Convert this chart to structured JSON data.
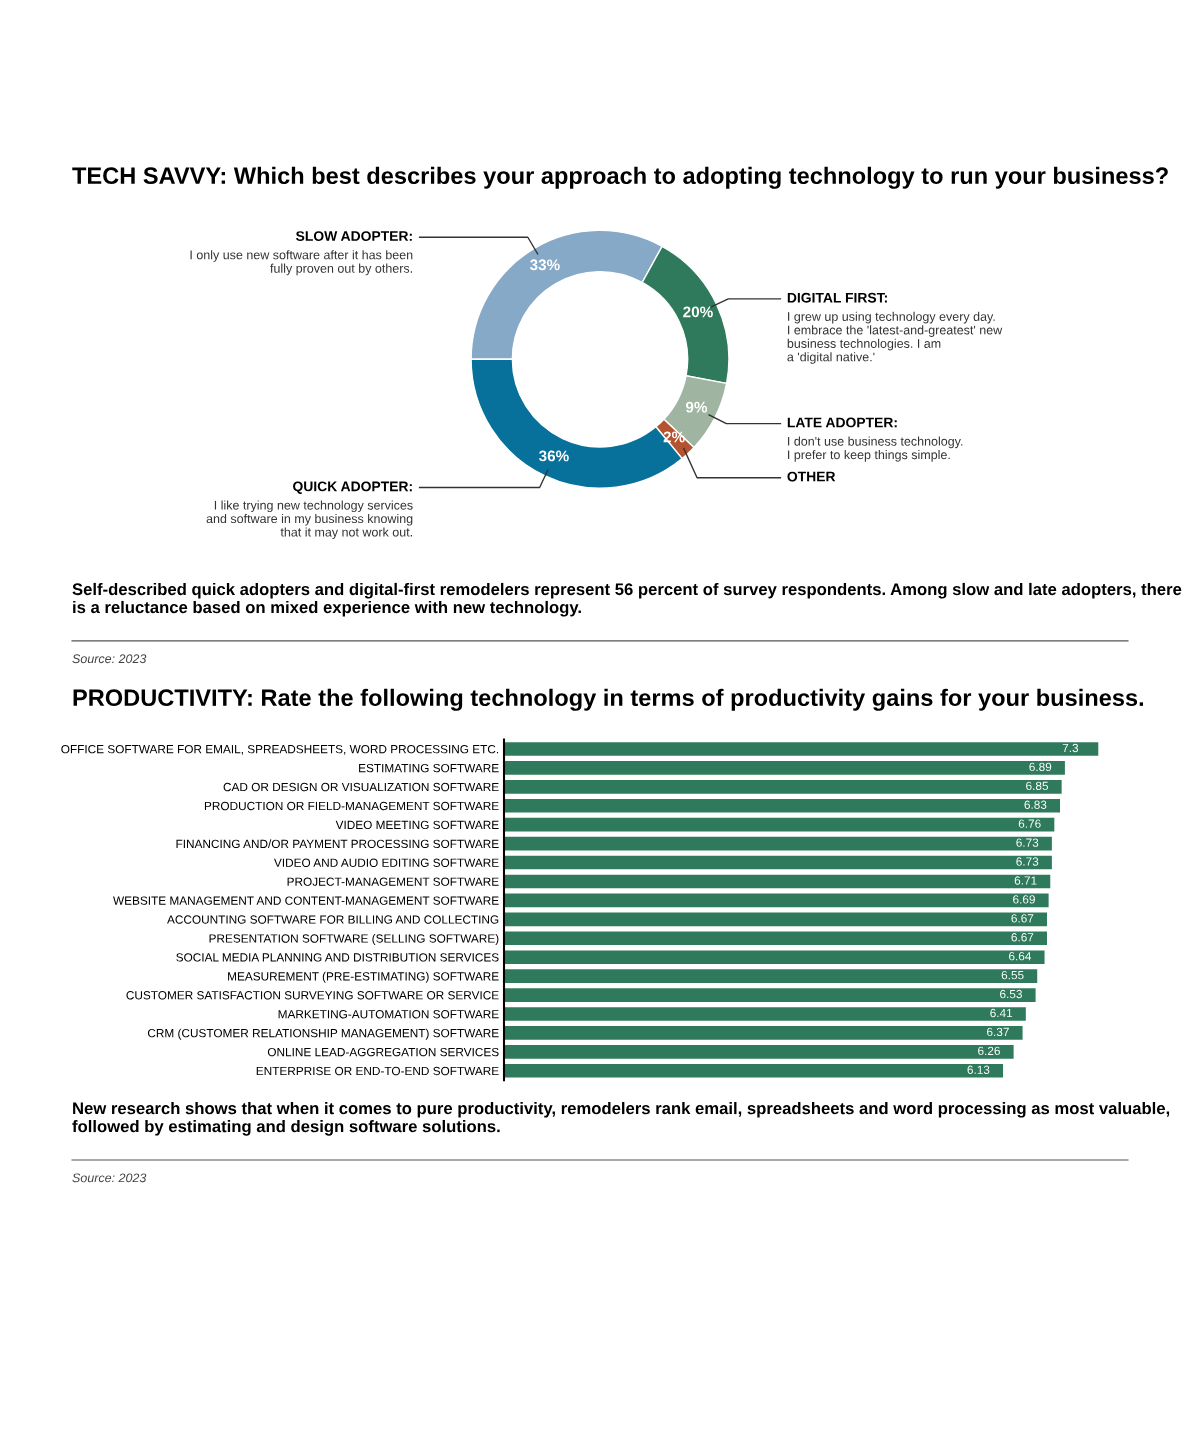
{
  "chart_data": [
    {
      "type": "donut",
      "title": "TECH SAVVY: Which best describes your approach to adopting technology to run your business?",
      "categories": [
        "SLOW ADOPTER:\nI only use new software after it has been\nfully proven out by others.",
        "DIGITAL FIRST:\nI grew up using technology every day.\nI embrace the 'latest-and-greatest' new\nbusiness technologies. I am\na 'digital native.'",
        "LATE ADOPTER:\nI don't use business technology.\nI prefer to keep things simple.",
        "OTHER",
        "QUICK ADOPTER:\nI like trying new technology services\nand software in my business knowing\nthat it may not work out."
      ],
      "values": [
        33,
        20,
        9,
        2,
        36
      ],
      "colors": [
        "#87a9c8",
        "#2f7a5c",
        "#9fb5a2",
        "#b5522f",
        "#08719b"
      ],
      "value_labels": [
        "33%",
        "20%",
        "9%",
        "2%",
        "36%"
      ],
      "annotations": [
        "Self-described quick adopters and digital-first remodelers represent 56 percent of survey respondents. Among slow and late adopters, there is a reluctance based on mixed experience with new technology.",
        "Source: 2023"
      ]
    },
    {
      "type": "bar",
      "orientation": "horizontal",
      "title": "PRODUCTIVITY: Rate the following technology in terms of productivity gains for your business.",
      "categories": [
        "OFFICE SOFTWARE FOR EMAIL, SPREADSHEETS, WORD PROCESSING ETC.",
        "ESTIMATING SOFTWARE",
        "CAD OR DESIGN OR VISUALIZATION SOFTWARE",
        "PRODUCTION OR FIELD-MANAGEMENT SOFTWARE",
        "VIDEO MEETING SOFTWARE",
        "FINANCING AND/OR PAYMENT PROCESSING SOFTWARE",
        "VIDEO AND AUDIO EDITING SOFTWARE",
        "PROJECT-MANAGEMENT SOFTWARE",
        "WEBSITE MANAGEMENT AND CONTENT-MANAGEMENT SOFTWARE",
        "ACCOUNTING SOFTWARE FOR BILLING AND COLLECTING",
        "PRESENTATION SOFTWARE (SELLING SOFTWARE)",
        "SOCIAL MEDIA PLANNING AND DISTRIBUTION SERVICES",
        "MEASUREMENT (PRE-ESTIMATING) SOFTWARE",
        "CUSTOMER SATISFACTION SURVEYING SOFTWARE OR SERVICE",
        "MARKETING-AUTOMATION SOFTWARE",
        "CRM (CUSTOMER RELATIONSHIP MANAGEMENT) SOFTWARE",
        "ONLINE LEAD-AGGREGATION SERVICES",
        "ENTERPRISE OR END-TO-END SOFTWARE"
      ],
      "values": [
        7.3,
        6.89,
        6.85,
        6.83,
        6.76,
        6.73,
        6.73,
        6.71,
        6.69,
        6.67,
        6.67,
        6.64,
        6.55,
        6.53,
        6.41,
        6.37,
        6.26,
        6.13
      ],
      "color": "#2f7a5c",
      "tick_labels": "y",
      "data_labels": true,
      "annotations": [
        "New research shows that when it comes to pure productivity, remodelers rank email, spreadsheets and word processing as most valuable, followed by estimating and design software solutions.",
        "Source: 2023"
      ]
    }
  ]
}
